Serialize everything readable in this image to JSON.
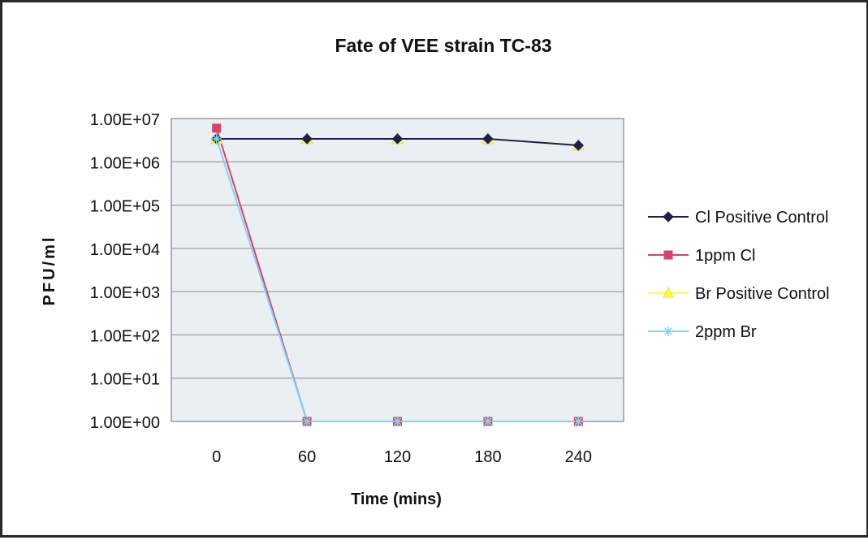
{
  "chart_data": {
    "type": "line",
    "title": "Fate of VEE strain TC-83",
    "xlabel": "Time (mins)",
    "ylabel": "PFU/ml",
    "y_scale": "log",
    "ylim": [
      1,
      10000000
    ],
    "x": [
      0,
      60,
      120,
      180,
      240
    ],
    "x_tick_labels": [
      "0",
      "60",
      "120",
      "180",
      "240"
    ],
    "y_tick_labels": [
      "1.00E+07",
      "1.00E+06",
      "1.00E+05",
      "1.00E+04",
      "1.00E+03",
      "1.00E+02",
      "1.00E+01",
      "1.00E+00"
    ],
    "grid": "horizontal",
    "legend_position": "right",
    "series": [
      {
        "name": "Cl Positive Control",
        "values": [
          3400000,
          3400000,
          3400000,
          3400000,
          2400000
        ],
        "color": "#1f1f4f",
        "marker": "diamond"
      },
      {
        "name": "1ppm Cl",
        "values": [
          6000000,
          1,
          1,
          1,
          1
        ],
        "color": "#d9436b",
        "marker": "square"
      },
      {
        "name": "Br Positive Control",
        "values": [
          3400000,
          3400000,
          3400000,
          3400000,
          2400000
        ],
        "color": "#ffff33",
        "marker": "triangle"
      },
      {
        "name": "2ppm Br",
        "values": [
          3400000,
          1,
          1,
          1,
          1
        ],
        "color": "#7fd7ef",
        "marker": "star"
      }
    ]
  }
}
